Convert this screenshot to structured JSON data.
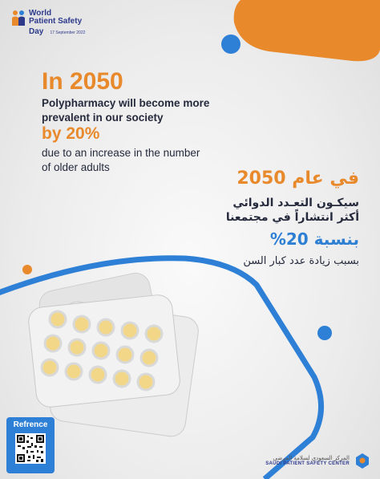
{
  "header_logo": {
    "title_line1": "World",
    "title_line2": "Patient Safety",
    "title_line3": "Day",
    "date": "17 September 2022"
  },
  "english": {
    "year_heading": "In 2050",
    "line1": "Polypharmacy will become more prevalent in our society",
    "percent_heading": "by 20%",
    "line2": "due to an increase in the number of older adults"
  },
  "arabic": {
    "year_heading": "في عام 2050",
    "line1a": "سيكـون التعـدد الدوائي",
    "line1b": "أكثر انتشاراً في مجتمعنا",
    "percent_heading": "بنسبة 20%",
    "line2": "بسبب زيادة عدد كبار السن"
  },
  "reference": {
    "label": "Refrence"
  },
  "footer_logo": {
    "arabic_name": "المركز السعودي لسلامة المرضى",
    "english_name": "SAUDI PATIENT SAFETY CENTER"
  },
  "colors": {
    "orange": "#e8892c",
    "blue": "#2e7fd6",
    "navy": "#252a3d"
  }
}
